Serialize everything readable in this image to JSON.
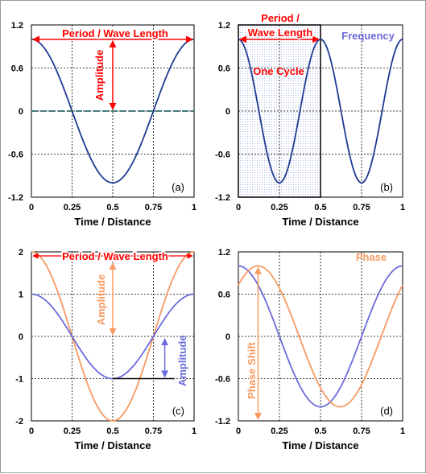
{
  "chart_data": [
    {
      "type": "line",
      "panel_label": "(a)",
      "xlabel": "Time / Distance",
      "x_ticks": [
        "0",
        "0.25",
        "0.5",
        "0.75",
        "1"
      ],
      "y_ticks": [
        "1.2",
        "0.6",
        "0",
        "-0.6",
        "-1.2"
      ],
      "xlim": [
        0,
        1
      ],
      "ylim": [
        -1.2,
        1.2
      ],
      "grid": true,
      "series": [
        {
          "color": "#1f3a93",
          "function": "cos(2*pi*x)",
          "amplitude": 1,
          "frequency": 1,
          "phase": 0
        },
        {
          "color": "#2e6b6b",
          "style": "dashed",
          "constant": 0
        }
      ],
      "annotations": [
        {
          "text": "Period / Wave Length",
          "color": "#ff0000"
        },
        {
          "text": "Amplitude",
          "color": "#ff0000"
        }
      ]
    },
    {
      "type": "line",
      "panel_label": "(b)",
      "xlabel": "Time / Distance",
      "x_ticks": [
        "0",
        "0.25",
        "0.5",
        "0.75",
        "1"
      ],
      "y_ticks": [
        "1.2",
        "0.6",
        "0",
        "-0.6",
        "-1.2"
      ],
      "xlim": [
        0,
        1
      ],
      "ylim": [
        -1.2,
        1.2
      ],
      "grid": true,
      "series": [
        {
          "color": "#1f3a93",
          "function": "cos(4*pi*x)",
          "amplitude": 1,
          "frequency": 2,
          "phase": 0
        }
      ],
      "highlight_region": {
        "x": [
          0,
          0.5
        ],
        "label": "One Cycle"
      },
      "annotations": [
        {
          "text_lines": [
            "Period /",
            "Wave Length"
          ],
          "color": "#ff0000"
        },
        {
          "text": "One Cycle",
          "color": "#ff0000"
        },
        {
          "text": "Frequency",
          "color": "#6b6bdc"
        }
      ]
    },
    {
      "type": "line",
      "panel_label": "(c)",
      "xlabel": "Time / Distance",
      "x_ticks": [
        "0",
        "0.25",
        "0.5",
        "0.75",
        "1"
      ],
      "y_ticks": [
        "2",
        "1",
        "0",
        "-1",
        "-2"
      ],
      "xlim": [
        0,
        1
      ],
      "ylim": [
        -2,
        2
      ],
      "grid": true,
      "series": [
        {
          "color": "#f79a62",
          "function": "2*cos(2*pi*x)",
          "amplitude": 2,
          "frequency": 1,
          "phase": 0
        },
        {
          "color": "#6b6bdc",
          "function": "cos(2*pi*x)",
          "amplitude": 1,
          "frequency": 1,
          "phase": 0
        }
      ],
      "annotations": [
        {
          "text": "Period / Wave Length",
          "color": "#ff0000"
        },
        {
          "text": "Amplitude",
          "color": "#f79a62"
        },
        {
          "text": "Amplitude",
          "color": "#6b6bdc"
        }
      ]
    },
    {
      "type": "line",
      "panel_label": "(d)",
      "xlabel": "Time / Distance",
      "x_ticks": [
        "0",
        "0.25",
        "0.5",
        "0.75",
        "1"
      ],
      "y_ticks": [
        "1.2",
        "0.6",
        "0",
        "-0.6",
        "-1.2"
      ],
      "xlim": [
        0,
        1
      ],
      "ylim": [
        -1.2,
        1.2
      ],
      "grid": true,
      "series": [
        {
          "color": "#6b6bdc",
          "function": "cos(2*pi*x)",
          "amplitude": 1,
          "frequency": 1,
          "phase": 0
        },
        {
          "color": "#f79a62",
          "function": "cos(2*pi*(x-0.12))",
          "amplitude": 1,
          "frequency": 1,
          "phase": 0.12
        }
      ],
      "annotations": [
        {
          "text": "Phase",
          "color": "#f79a62"
        },
        {
          "text": "Phase Shift",
          "color": "#f79a62"
        }
      ]
    }
  ]
}
